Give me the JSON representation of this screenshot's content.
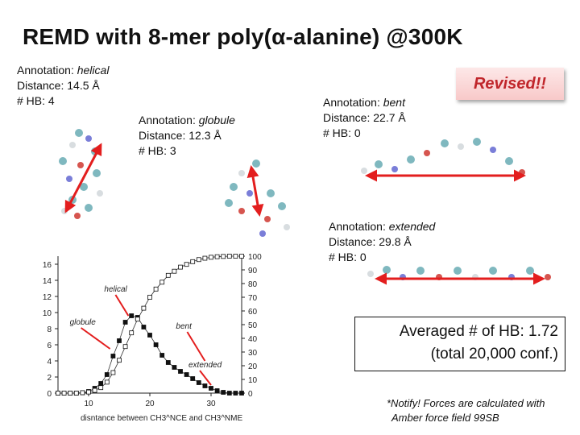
{
  "title": "REMD with 8-mer poly(α-alanine) @300K",
  "badge": "Revised!!",
  "annotations": {
    "helical": {
      "prefix": "Annotation: ",
      "name": "helical",
      "distance": "Distance: 14.5 Å",
      "hb": "# HB: 4"
    },
    "globule": {
      "prefix": "Annotation: ",
      "name": "globule",
      "distance": "Distance: 12.3 Å",
      "hb": "# HB: 3"
    },
    "bent": {
      "prefix": "Annotation: ",
      "name": "bent",
      "distance": "Distance: 22.7 Å",
      "hb": "# HB: 0"
    },
    "extended": {
      "prefix": "Annotation: ",
      "name": "extended",
      "distance": "Distance: 29.8 Å",
      "hb": "# HB: 0"
    }
  },
  "summary": {
    "line1": "Averaged # of HB: 1.72",
    "line2": "(total 20,000 conf.)"
  },
  "note": {
    "line1": "*Notify! Forces are calculated with",
    "line2": "Amber force field 99SB"
  },
  "colors": {
    "arrow": "#e31e1e",
    "title": "#111111",
    "badge_text": "#c0262b"
  },
  "chart_data": {
    "type": "line",
    "xlabel": "disntance between CH3^NCE and CH3^NME",
    "xlim": [
      5,
      35
    ],
    "xticks": [
      10,
      20,
      30
    ],
    "left_axis": {
      "ylim": [
        0,
        17
      ],
      "ticks": [
        0,
        2,
        4,
        6,
        8,
        10,
        12,
        14,
        16
      ]
    },
    "right_axis": {
      "ylim": [
        0,
        100
      ],
      "ticks": [
        0,
        10,
        20,
        30,
        40,
        50,
        60,
        70,
        80,
        90,
        100
      ]
    },
    "series": [
      {
        "style": "filled-square",
        "axis": "left",
        "x": [
          5,
          6,
          7,
          8,
          9,
          10,
          11,
          12,
          13,
          14,
          15,
          16,
          17,
          18,
          19,
          20,
          21,
          22,
          23,
          24,
          25,
          26,
          27,
          28,
          29,
          30,
          31,
          32,
          33,
          34,
          35
        ],
        "y": [
          0.0,
          0.0,
          0.0,
          0.0,
          0.05,
          0.2,
          0.6,
          1.2,
          2.3,
          4.6,
          6.5,
          8.8,
          9.6,
          9.4,
          8.2,
          7.2,
          6.0,
          4.7,
          3.8,
          3.2,
          2.7,
          2.3,
          1.8,
          1.3,
          0.9,
          0.6,
          0.3,
          0.1,
          0.0,
          0.0,
          0.0
        ]
      },
      {
        "style": "open-square",
        "axis": "right",
        "x": [
          5,
          6,
          7,
          8,
          9,
          10,
          11,
          12,
          13,
          14,
          15,
          16,
          17,
          18,
          19,
          20,
          21,
          22,
          23,
          24,
          25,
          26,
          27,
          28,
          29,
          30,
          31,
          32,
          33,
          34,
          35
        ],
        "y": [
          0,
          0,
          0,
          0,
          0.3,
          0.8,
          2,
          4,
          8,
          15,
          24,
          34,
          44,
          54,
          62,
          70,
          76,
          81,
          86,
          89,
          92,
          94,
          96,
          97.5,
          98.5,
          99.2,
          99.6,
          99.8,
          100,
          100,
          100
        ]
      }
    ],
    "annotations": [
      {
        "text": "helical",
        "x": 16.5,
        "y": 9.6
      },
      {
        "text": "globule",
        "x": 13.5,
        "y": 5.5
      },
      {
        "text": "bent",
        "x": 29.0,
        "y": 4.0
      },
      {
        "text": "extended",
        "x": 30.0,
        "y": 1.0
      }
    ]
  }
}
